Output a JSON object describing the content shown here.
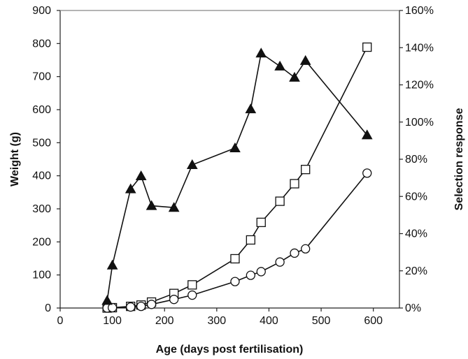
{
  "chart_data": {
    "type": "line",
    "xlabel": "Age (days post fertilisation)",
    "ylabel": "Weight (g)",
    "y2label": "Selection response",
    "xlim": [
      0,
      650
    ],
    "ylim": [
      0,
      900
    ],
    "y2lim": [
      0,
      1.6
    ],
    "x_ticks": [
      "0",
      "100",
      "200",
      "300",
      "400",
      "500",
      "600"
    ],
    "y_ticks": [
      "0",
      "100",
      "200",
      "300",
      "400",
      "500",
      "600",
      "700",
      "800",
      "900"
    ],
    "y2_ticks": [
      "0%",
      "20%",
      "40%",
      "60%",
      "80%",
      "100%",
      "120%",
      "140%",
      "160%"
    ],
    "grid": false,
    "legend": "none",
    "series": [
      {
        "marker": "open-square",
        "axis": "left",
        "x": [
          90,
          100,
          135,
          155,
          175,
          218,
          253,
          335,
          365,
          385,
          421,
          449,
          470,
          588
        ],
        "values": [
          0,
          1,
          5,
          9,
          18,
          44,
          70,
          149,
          206,
          259,
          323,
          376,
          419,
          789
        ]
      },
      {
        "marker": "open-circle",
        "axis": "left",
        "x": [
          90,
          100,
          135,
          155,
          175,
          218,
          253,
          335,
          365,
          385,
          421,
          449,
          470,
          588
        ],
        "values": [
          0,
          1,
          3,
          5,
          11,
          26,
          39,
          80,
          99,
          110,
          139,
          166,
          179,
          408
        ]
      },
      {
        "marker": "filled-triangle",
        "axis": "right",
        "x": [
          90,
          100,
          135,
          155,
          175,
          218,
          253,
          335,
          365,
          385,
          421,
          449,
          470,
          588
        ],
        "values": [
          0.04,
          0.23,
          0.64,
          0.71,
          0.55,
          0.54,
          0.77,
          0.86,
          1.07,
          1.37,
          1.3,
          1.24,
          1.33,
          0.93
        ]
      }
    ]
  }
}
